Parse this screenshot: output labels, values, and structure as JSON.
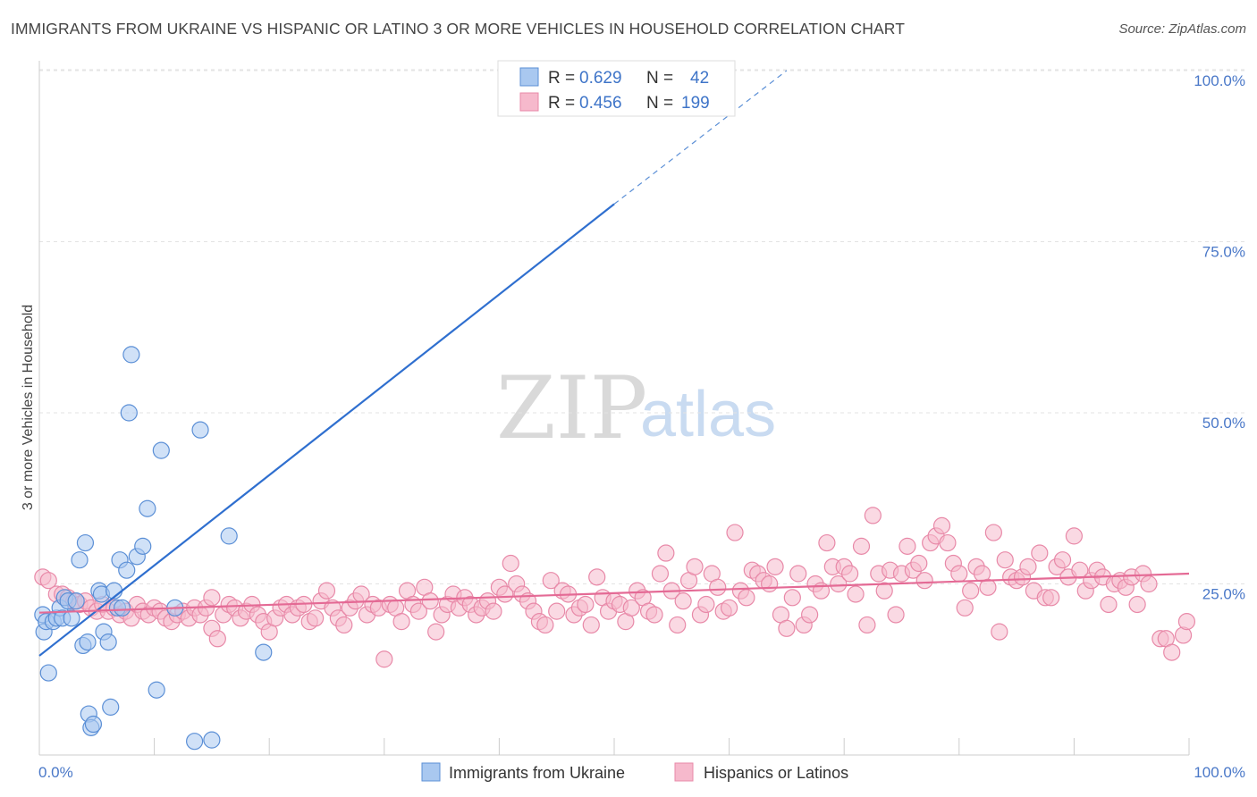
{
  "header": {
    "title": "IMMIGRANTS FROM UKRAINE VS HISPANIC OR LATINO 3 OR MORE VEHICLES IN HOUSEHOLD CORRELATION CHART",
    "source": "Source: ZipAtlas.com"
  },
  "watermark": {
    "zip": "ZIP",
    "atlas": "atlas"
  },
  "colors": {
    "blue_fill": "#a9c8f0",
    "blue_stroke": "#5b8fd6",
    "blue_line": "#2f6fcf",
    "pink_fill": "#f6b9cc",
    "pink_stroke": "#e889a8",
    "pink_line": "#e46a95",
    "tick_text": "#4a78c8",
    "grid": "#e3e3e3"
  },
  "legend": {
    "rows": [
      {
        "r_label": "R =",
        "r_value": "0.629",
        "n_label": "N =",
        "n_value": "42"
      },
      {
        "r_label": "R =",
        "r_value": "0.456",
        "n_label": "N =",
        "n_value": "199"
      }
    ]
  },
  "bottom_legend": [
    "Immigrants from Ukraine",
    "Hispanics or Latinos"
  ],
  "chart_data": {
    "type": "scatter",
    "xlabel": "",
    "ylabel": "3 or more Vehicles in Household",
    "xlim": [
      0,
      100
    ],
    "ylim": [
      0,
      100
    ],
    "x_tick_labels": [
      "0.0%",
      "100.0%"
    ],
    "y_ticks": [
      25,
      50,
      75,
      100
    ],
    "y_tick_labels": [
      "25.0%",
      "50.0%",
      "75.0%",
      "100.0%"
    ],
    "grid": true,
    "legend_position": "top-center",
    "series": [
      {
        "name": "Immigrants from Ukraine",
        "r": 0.629,
        "n": 42,
        "trend": {
          "x_start": 0,
          "y_start": 14.5,
          "x_end": 50,
          "y_end": 80.5,
          "dashed_to_x": 65,
          "dashed_to_y": 100
        },
        "points": [
          [
            0.3,
            20.5
          ],
          [
            0.4,
            18.0
          ],
          [
            0.6,
            19.5
          ],
          [
            0.8,
            12.0
          ],
          [
            1.2,
            19.5
          ],
          [
            1.5,
            20.0
          ],
          [
            1.8,
            21.5
          ],
          [
            2.0,
            20.0
          ],
          [
            2.2,
            23.0
          ],
          [
            2.5,
            22.5
          ],
          [
            2.8,
            20.0
          ],
          [
            3.2,
            22.5
          ],
          [
            3.5,
            28.5
          ],
          [
            3.8,
            16.0
          ],
          [
            4.0,
            31.0
          ],
          [
            4.2,
            16.5
          ],
          [
            4.3,
            6.0
          ],
          [
            4.5,
            4.0
          ],
          [
            4.7,
            4.5
          ],
          [
            5.2,
            24.0
          ],
          [
            5.4,
            23.5
          ],
          [
            5.6,
            18.0
          ],
          [
            6.0,
            16.5
          ],
          [
            6.2,
            7.0
          ],
          [
            6.5,
            24.0
          ],
          [
            6.8,
            21.5
          ],
          [
            7.0,
            28.5
          ],
          [
            7.2,
            21.5
          ],
          [
            7.6,
            27.0
          ],
          [
            8.0,
            58.5
          ],
          [
            7.8,
            50.0
          ],
          [
            8.5,
            29.0
          ],
          [
            9.0,
            30.5
          ],
          [
            9.4,
            36.0
          ],
          [
            10.2,
            9.5
          ],
          [
            10.6,
            44.5
          ],
          [
            11.8,
            21.5
          ],
          [
            13.5,
            2.0
          ],
          [
            14.0,
            47.5
          ],
          [
            15.0,
            2.2
          ],
          [
            16.5,
            32.0
          ],
          [
            19.5,
            15.0
          ]
        ]
      },
      {
        "name": "Hispanics or Latinos",
        "r": 0.456,
        "n": 199,
        "trend": {
          "x_start": 0,
          "y_start": 20.8,
          "x_end": 100,
          "y_end": 26.5
        },
        "points": [
          [
            0.3,
            26.0
          ],
          [
            0.8,
            25.5
          ],
          [
            1.5,
            23.5
          ],
          [
            2.0,
            23.5
          ],
          [
            2.5,
            23.0
          ],
          [
            3.0,
            22.5
          ],
          [
            3.5,
            22.0
          ],
          [
            4.0,
            22.5
          ],
          [
            4.5,
            21.5
          ],
          [
            5.0,
            21.0
          ],
          [
            5.5,
            22.0
          ],
          [
            6.0,
            21.0
          ],
          [
            6.5,
            21.5
          ],
          [
            7.0,
            20.5
          ],
          [
            7.5,
            21.0
          ],
          [
            8.0,
            20.0
          ],
          [
            8.5,
            22.0
          ],
          [
            9.0,
            21.0
          ],
          [
            9.5,
            20.5
          ],
          [
            10.0,
            21.5
          ],
          [
            10.5,
            21.0
          ],
          [
            11.0,
            20.0
          ],
          [
            11.5,
            19.5
          ],
          [
            12.0,
            20.5
          ],
          [
            12.5,
            21.0
          ],
          [
            13.0,
            20.0
          ],
          [
            13.5,
            21.5
          ],
          [
            14.0,
            20.5
          ],
          [
            14.5,
            21.5
          ],
          [
            15.0,
            18.5
          ],
          [
            15.5,
            17.0
          ],
          [
            16.0,
            20.5
          ],
          [
            16.5,
            22.0
          ],
          [
            17.0,
            21.5
          ],
          [
            17.5,
            20.0
          ],
          [
            18.0,
            21.0
          ],
          [
            18.5,
            22.0
          ],
          [
            19.0,
            20.5
          ],
          [
            19.5,
            19.5
          ],
          [
            20.0,
            18.0
          ],
          [
            20.5,
            20.0
          ],
          [
            21.0,
            21.5
          ],
          [
            21.5,
            22.0
          ],
          [
            22.0,
            20.5
          ],
          [
            22.5,
            21.5
          ],
          [
            23.0,
            22.0
          ],
          [
            23.5,
            19.5
          ],
          [
            24.0,
            20.0
          ],
          [
            24.5,
            22.5
          ],
          [
            25.0,
            24.0
          ],
          [
            25.5,
            21.5
          ],
          [
            26.0,
            20.0
          ],
          [
            26.5,
            19.0
          ],
          [
            27.0,
            21.5
          ],
          [
            27.5,
            22.5
          ],
          [
            28.0,
            23.5
          ],
          [
            28.5,
            20.5
          ],
          [
            29.0,
            22.0
          ],
          [
            29.5,
            21.5
          ],
          [
            30.0,
            14.0
          ],
          [
            30.5,
            22.0
          ],
          [
            31.0,
            21.5
          ],
          [
            31.5,
            19.5
          ],
          [
            32.0,
            24.0
          ],
          [
            32.5,
            22.0
          ],
          [
            33.0,
            21.0
          ],
          [
            33.5,
            24.5
          ],
          [
            34.0,
            22.5
          ],
          [
            34.5,
            18.0
          ],
          [
            35.0,
            20.5
          ],
          [
            35.5,
            22.0
          ],
          [
            36.0,
            23.5
          ],
          [
            36.5,
            21.5
          ],
          [
            37.0,
            23.0
          ],
          [
            37.5,
            22.0
          ],
          [
            38.0,
            20.5
          ],
          [
            38.5,
            21.5
          ],
          [
            39.0,
            22.5
          ],
          [
            39.5,
            21.0
          ],
          [
            40.0,
            24.5
          ],
          [
            40.5,
            23.5
          ],
          [
            41.0,
            28.0
          ],
          [
            41.5,
            25.0
          ],
          [
            42.0,
            23.5
          ],
          [
            42.5,
            22.5
          ],
          [
            43.0,
            21.0
          ],
          [
            43.5,
            19.5
          ],
          [
            44.0,
            19.0
          ],
          [
            44.5,
            25.5
          ],
          [
            45.0,
            21.0
          ],
          [
            45.5,
            24.0
          ],
          [
            46.0,
            23.5
          ],
          [
            46.5,
            20.5
          ],
          [
            47.0,
            21.5
          ],
          [
            47.5,
            22.0
          ],
          [
            48.0,
            19.0
          ],
          [
            48.5,
            26.0
          ],
          [
            49.0,
            23.0
          ],
          [
            49.5,
            21.0
          ],
          [
            50.0,
            22.5
          ],
          [
            50.5,
            22.0
          ],
          [
            51.0,
            19.5
          ],
          [
            51.5,
            21.5
          ],
          [
            52.0,
            24.0
          ],
          [
            52.5,
            23.0
          ],
          [
            53.0,
            21.0
          ],
          [
            53.5,
            20.5
          ],
          [
            54.0,
            26.5
          ],
          [
            54.5,
            29.5
          ],
          [
            55.0,
            24.0
          ],
          [
            55.5,
            19.0
          ],
          [
            56.0,
            22.5
          ],
          [
            56.5,
            25.5
          ],
          [
            57.0,
            27.5
          ],
          [
            57.5,
            20.5
          ],
          [
            58.0,
            22.0
          ],
          [
            58.5,
            26.5
          ],
          [
            59.0,
            24.5
          ],
          [
            59.5,
            21.0
          ],
          [
            60.0,
            21.5
          ],
          [
            60.5,
            32.5
          ],
          [
            61.0,
            24.0
          ],
          [
            61.5,
            23.0
          ],
          [
            62.0,
            27.0
          ],
          [
            62.5,
            26.5
          ],
          [
            63.0,
            25.5
          ],
          [
            63.5,
            25.0
          ],
          [
            64.0,
            27.5
          ],
          [
            64.5,
            20.5
          ],
          [
            65.0,
            18.5
          ],
          [
            65.5,
            23.0
          ],
          [
            66.0,
            26.5
          ],
          [
            66.5,
            19.0
          ],
          [
            67.0,
            20.5
          ],
          [
            67.5,
            25.0
          ],
          [
            68.0,
            24.0
          ],
          [
            68.5,
            31.0
          ],
          [
            69.0,
            27.5
          ],
          [
            69.5,
            25.0
          ],
          [
            70.0,
            27.5
          ],
          [
            70.5,
            26.5
          ],
          [
            71.0,
            23.5
          ],
          [
            71.5,
            30.5
          ],
          [
            72.0,
            19.0
          ],
          [
            72.5,
            35.0
          ],
          [
            73.0,
            26.5
          ],
          [
            73.5,
            24.0
          ],
          [
            74.0,
            27.0
          ],
          [
            74.5,
            20.5
          ],
          [
            75.0,
            26.5
          ],
          [
            75.5,
            30.5
          ],
          [
            76.0,
            27.0
          ],
          [
            76.5,
            28.0
          ],
          [
            77.0,
            25.5
          ],
          [
            77.5,
            31.0
          ],
          [
            78.0,
            32.0
          ],
          [
            78.5,
            33.5
          ],
          [
            79.0,
            31.0
          ],
          [
            79.5,
            28.0
          ],
          [
            80.0,
            26.5
          ],
          [
            80.5,
            21.5
          ],
          [
            81.0,
            24.0
          ],
          [
            81.5,
            27.5
          ],
          [
            82.0,
            26.5
          ],
          [
            82.5,
            24.5
          ],
          [
            83.0,
            32.5
          ],
          [
            83.5,
            18.0
          ],
          [
            84.0,
            28.5
          ],
          [
            84.5,
            26.0
          ],
          [
            85.0,
            25.5
          ],
          [
            85.5,
            26.0
          ],
          [
            86.0,
            27.5
          ],
          [
            86.5,
            24.0
          ],
          [
            87.0,
            29.5
          ],
          [
            87.5,
            23.0
          ],
          [
            88.0,
            23.0
          ],
          [
            88.5,
            27.5
          ],
          [
            89.0,
            28.5
          ],
          [
            89.5,
            26.0
          ],
          [
            90.0,
            32.0
          ],
          [
            90.5,
            27.0
          ],
          [
            91.0,
            24.0
          ],
          [
            91.5,
            25.5
          ],
          [
            92.0,
            27.0
          ],
          [
            92.5,
            26.0
          ],
          [
            93.0,
            22.0
          ],
          [
            93.5,
            25.0
          ],
          [
            94.0,
            25.5
          ],
          [
            94.5,
            24.5
          ],
          [
            95.0,
            26.0
          ],
          [
            95.5,
            22.0
          ],
          [
            96.0,
            26.5
          ],
          [
            96.5,
            25.0
          ],
          [
            97.5,
            17.0
          ],
          [
            98.0,
            17.0
          ],
          [
            98.5,
            15.0
          ],
          [
            99.5,
            17.5
          ],
          [
            99.8,
            19.5
          ],
          [
            15.0,
            23.0
          ]
        ]
      }
    ]
  }
}
